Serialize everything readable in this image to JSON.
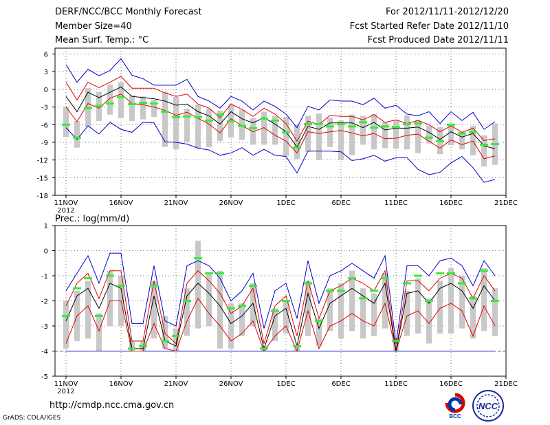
{
  "header": {
    "title": "DERF/NCC/BCC Monthly Forecast",
    "member_size": "Member Size=40",
    "variable_top": "Mean Surf. Temp.: °C",
    "period": "For 2012/11/11-2012/12/20",
    "refer_date": "Fcst Started Refer Date 2012/11/10",
    "produced_date": "Fcst Produced Date 2012/11/11"
  },
  "footer": {
    "url": "http://cmdp.ncc.cma.gov.cn",
    "credit": "GrADS: COLA/IGES",
    "logo_bcc": "BCC",
    "logo_ncc": "NCC"
  },
  "colors": {
    "mean": "#000000",
    "spread": "#e00000",
    "extreme": "#0000cc",
    "box": "#c8c8c8",
    "median": "#33ee33"
  },
  "chart_data": [
    {
      "type": "box-ensemble",
      "title": "Mean Surf. Temp.: °C",
      "ylim": [
        -18,
        7
      ],
      "yticks": [
        -18,
        -15,
        -12,
        -9,
        -6,
        -3,
        0,
        3,
        6
      ],
      "xticks": [
        {
          "day": 0,
          "label": "11NOV",
          "sub": "2012"
        },
        {
          "day": 5,
          "label": "16NOV"
        },
        {
          "day": 10,
          "label": "21NOV"
        },
        {
          "day": 15,
          "label": "26NOV"
        },
        {
          "day": 20,
          "label": "1DEC"
        },
        {
          "day": 25,
          "label": "6DEC"
        },
        {
          "day": 30,
          "label": "11DEC"
        },
        {
          "day": 35,
          "label": "16DEC"
        },
        {
          "day": 40,
          "label": "21DEC"
        }
      ],
      "days": [
        0,
        1,
        2,
        3,
        4,
        5,
        6,
        7,
        8,
        9,
        10,
        11,
        12,
        13,
        14,
        15,
        16,
        17,
        18,
        19,
        20,
        21,
        22,
        23,
        24,
        25,
        26,
        27,
        28,
        29,
        30,
        31,
        32,
        33,
        34,
        35,
        36,
        37,
        38,
        39
      ],
      "max": [
        4.2,
        1.2,
        3.4,
        2.3,
        3.2,
        5.2,
        2.4,
        1.8,
        0.7,
        0.7,
        0.7,
        1.7,
        -1.2,
        -2,
        -3.2,
        -1.2,
        -2,
        -3.5,
        -2,
        -2.9,
        -4.2,
        -6.5,
        -2.9,
        -3.5,
        -1.8,
        -2,
        -2,
        -2.6,
        -1.5,
        -3.2,
        -2.7,
        -4.2,
        -4.5,
        -3.8,
        -5.8,
        -3.8,
        -5.3,
        -3.9,
        -6.8,
        -5.5
      ],
      "upper": [
        1.2,
        -1.8,
        1.2,
        0.3,
        1.2,
        2.2,
        0.2,
        0.2,
        0.2,
        -0.6,
        -1.2,
        -0.8,
        -2.5,
        -3.2,
        -4.8,
        -2.5,
        -3.4,
        -4.6,
        -3.2,
        -4.2,
        -5.8,
        -8.8,
        -5.4,
        -6,
        -4.4,
        -4.6,
        -4.6,
        -5.2,
        -4.3,
        -5.6,
        -5.2,
        -5.8,
        -5.3,
        -6,
        -7.2,
        -6.2,
        -7.3,
        -6.6,
        -8.7,
        -8.4
      ],
      "mean": [
        -1.2,
        -3.8,
        -0.5,
        -1.4,
        -0.5,
        0.4,
        -1.2,
        -1.4,
        -1.6,
        -2,
        -2.7,
        -2.5,
        -3.8,
        -4.5,
        -5.9,
        -3.8,
        -5,
        -5.7,
        -4.8,
        -5.9,
        -7.2,
        -9.8,
        -6.3,
        -6.8,
        -5.7,
        -5.7,
        -5.7,
        -6.5,
        -5.6,
        -6.9,
        -6.6,
        -6.6,
        -6.4,
        -7.3,
        -8.5,
        -7.2,
        -8.1,
        -7.5,
        -9.6,
        -10.1
      ],
      "lower": [
        -3,
        -5.5,
        -2.4,
        -3.2,
        -1.5,
        -0.8,
        -2.4,
        -2.6,
        -3,
        -3.6,
        -4.4,
        -3.9,
        -4.9,
        -5.9,
        -7.4,
        -5,
        -6.2,
        -7.2,
        -6.5,
        -7.8,
        -8.8,
        -10.8,
        -7.2,
        -7.5,
        -7.2,
        -7,
        -7.4,
        -7.9,
        -7.5,
        -8.4,
        -8.3,
        -7.8,
        -7.6,
        -8.8,
        -10,
        -8.6,
        -9.4,
        -8.8,
        -11.8,
        -11.3
      ],
      "min": [
        -6.5,
        -8.5,
        -6.2,
        -7.6,
        -5.6,
        -6.8,
        -7.3,
        -5.6,
        -5.7,
        -8.9,
        -9,
        -9.3,
        -10,
        -10.3,
        -11.2,
        -10.8,
        -9.9,
        -11.2,
        -10.2,
        -11.2,
        -11.4,
        -14.2,
        -10.5,
        -10.5,
        -10.5,
        -10.6,
        -12.1,
        -11.8,
        -11.2,
        -12.2,
        -11.6,
        -11.6,
        -13.6,
        -14.5,
        -14.1,
        -12.5,
        -11.4,
        -13.3,
        -15.8,
        -15.3
      ],
      "box_top": [
        -3,
        -5.4,
        0.2,
        -0.4,
        0.8,
        1.2,
        -1,
        -1.2,
        -1.8,
        -0.4,
        -1.3,
        -3.3,
        -2.6,
        -3.3,
        -3.6,
        -2.6,
        -3.5,
        -4.9,
        -3.8,
        -4.5,
        -4.7,
        -6,
        -4.5,
        -4.1,
        -4.8,
        -5.3,
        -4.3,
        -4.5,
        -4.2,
        -5.5,
        -5.3,
        -4.4,
        -5.2,
        -6.2,
        -6.4,
        -6.1,
        -7.2,
        -6.2,
        -7.8,
        -5.8
      ],
      "box_bottom": [
        -8.1,
        -9.9,
        -6.4,
        -5.4,
        -4.3,
        -4.9,
        -5.4,
        -5.1,
        -4.7,
        -9.8,
        -10.2,
        -8.9,
        -10,
        -9.8,
        -8.8,
        -8.2,
        -8.6,
        -9.4,
        -9.4,
        -9.4,
        -11.3,
        -11.8,
        -10.6,
        -12,
        -9.8,
        -12,
        -11.2,
        -9.4,
        -10.2,
        -10,
        -10.1,
        -10.2,
        -10.8,
        -9.2,
        -11,
        -9.5,
        -10.2,
        -11.2,
        -13.1,
        -12.8
      ],
      "median": [
        -6,
        -8.2,
        -3.2,
        -2.8,
        -2.4,
        -1.3,
        -2.5,
        -2.3,
        -2.4,
        -3.8,
        -4.7,
        -4.6,
        -4.7,
        -5.3,
        -4.3,
        -5.4,
        -6.2,
        -6.6,
        -5,
        -5.3,
        -7.3,
        -9.9,
        -5.9,
        -5.9,
        -6.3,
        -5.9,
        -6.3,
        -5.6,
        -6.5,
        -6.3,
        -6.4,
        -5.9,
        -5.8,
        -8.2,
        -8.8,
        -6,
        -7.5,
        -7.2,
        -9.4,
        -9.3
      ]
    },
    {
      "type": "box-ensemble",
      "title": "Prec.: log(mm/d)",
      "ylim": [
        -5,
        1
      ],
      "yticks": [
        -5,
        -4,
        -3,
        -2,
        -1,
        0,
        1
      ],
      "xticks": [
        {
          "day": 0,
          "label": "11NOV",
          "sub": "2012"
        },
        {
          "day": 5,
          "label": "16NOV"
        },
        {
          "day": 10,
          "label": "21NOV"
        },
        {
          "day": 15,
          "label": "26NOV"
        },
        {
          "day": 20,
          "label": "1DEC"
        },
        {
          "day": 25,
          "label": "6DEC"
        },
        {
          "day": 30,
          "label": "11DEC"
        },
        {
          "day": 35,
          "label": "16DEC"
        },
        {
          "day": 40,
          "label": "21DEC"
        }
      ],
      "baseline": -4,
      "days": [
        0,
        1,
        2,
        3,
        4,
        5,
        6,
        7,
        8,
        9,
        10,
        11,
        12,
        13,
        14,
        15,
        16,
        17,
        18,
        19,
        20,
        21,
        22,
        23,
        24,
        25,
        26,
        27,
        28,
        29,
        30,
        31,
        32,
        33,
        34,
        35,
        36,
        37,
        38,
        39
      ],
      "max": [
        -1.6,
        -0.9,
        -0.2,
        -1.3,
        -0.1,
        -0.1,
        -2.9,
        -2.9,
        -0.6,
        -2.8,
        -3,
        -0.6,
        -0.4,
        -0.6,
        -1.1,
        -2,
        -1.6,
        -0.9,
        -3.1,
        -1.6,
        -1.3,
        -2.7,
        -0.4,
        -2.1,
        -1,
        -0.8,
        -0.5,
        -0.8,
        -1.1,
        -0.2,
        -3.7,
        -0.6,
        -0.6,
        -1,
        -0.4,
        -0.3,
        -0.6,
        -1.4,
        -0.4,
        -1
      ],
      "upper": [
        -2.2,
        -1.3,
        -0.9,
        -1.9,
        -0.8,
        -0.8,
        -3.6,
        -3.6,
        -1.2,
        -3.3,
        -3.7,
        -1.3,
        -0.8,
        -1.2,
        -1.7,
        -2.5,
        -2.2,
        -1.5,
        -3.7,
        -2.2,
        -1.8,
        -3.4,
        -1.2,
        -2.7,
        -1.6,
        -1.4,
        -1.1,
        -1.3,
        -1.6,
        -0.8,
        -4,
        -1.2,
        -1.2,
        -1.6,
        -1.1,
        -0.9,
        -1.1,
        -1.9,
        -1,
        -1.6
      ],
      "mean": [
        -2.8,
        -1.8,
        -1.5,
        -2.3,
        -1.3,
        -1.5,
        -3.9,
        -3.9,
        -1.8,
        -3.6,
        -3.8,
        -1.8,
        -1.3,
        -1.7,
        -2.2,
        -2.9,
        -2.6,
        -2.1,
        -3.9,
        -2.6,
        -2.3,
        -3.8,
        -1.7,
        -3.1,
        -2.1,
        -1.8,
        -1.5,
        -1.8,
        -2.1,
        -1.3,
        -4,
        -1.7,
        -1.6,
        -2.1,
        -1.5,
        -1.3,
        -1.6,
        -2.3,
        -1.4,
        -2
      ],
      "lower": [
        -3.7,
        -2.6,
        -2.2,
        -3.2,
        -2,
        -2,
        -4,
        -4,
        -2.9,
        -3.9,
        -4,
        -2.8,
        -1.9,
        -2.5,
        -3,
        -3.6,
        -3.3,
        -2.8,
        -4,
        -3.4,
        -3,
        -4,
        -2.4,
        -3.9,
        -3,
        -2.8,
        -2.5,
        -2.8,
        -3,
        -2.1,
        -4,
        -2.6,
        -2.4,
        -2.9,
        -2.3,
        -2.1,
        -2.4,
        -3.4,
        -2.2,
        -3
      ],
      "min": [
        -4,
        -4,
        -4,
        -4,
        -4,
        -4,
        -4,
        -4,
        -4,
        -4,
        -4,
        -4,
        -4,
        -4,
        -4,
        -4,
        -4,
        -4,
        -4,
        -4,
        -4,
        -4,
        -4,
        -4,
        -4,
        -4,
        -4,
        -4,
        -4,
        -4,
        -4,
        -4,
        -4,
        -4,
        -4,
        -4,
        -4,
        -4,
        -4,
        -4
      ],
      "box_top": [
        -2,
        -1.6,
        -1.2,
        -2.5,
        -0.8,
        -1,
        -3.6,
        -3.6,
        -1.2,
        -2.6,
        -3.1,
        -1.5,
        0.4,
        -0.9,
        -0.8,
        -2.1,
        -2.1,
        -1.3,
        -3.8,
        -2.3,
        -2,
        -3.8,
        -1.2,
        -2.7,
        -1.5,
        -1.3,
        -0.8,
        -1.5,
        -1.7,
        -0.9,
        -3.6,
        -1.6,
        -1.1,
        -1.9,
        -1.2,
        -0.7,
        -1,
        -1.8,
        -0.7,
        -1.5
      ],
      "box_bottom": [
        -3.9,
        -3.6,
        -3.5,
        -4,
        -3,
        -3,
        -4,
        -4,
        -3.5,
        -3.9,
        -4,
        -3.4,
        -3.1,
        -3,
        -3.9,
        -3.9,
        -3.4,
        -3,
        -4,
        -3.6,
        -3.3,
        -4,
        -3.4,
        -3.8,
        -3.2,
        -3.5,
        -3.2,
        -3.5,
        -3.4,
        -3.1,
        -4,
        -3.4,
        -3.3,
        -3.7,
        -3.3,
        -3.3,
        -3.1,
        -3.5,
        -3.2,
        -3.4
      ],
      "median": [
        -2.6,
        -1.5,
        -1.1,
        -2.6,
        -1,
        -1.4,
        -3.9,
        -3.8,
        -1.4,
        -3.6,
        -3.4,
        -2,
        -0.3,
        -0.9,
        -0.9,
        -2.3,
        -2.2,
        -1.4,
        -3.9,
        -2.4,
        -2,
        -3.8,
        -1.3,
        -2.8,
        -1.6,
        -1.6,
        -1.1,
        -1.9,
        -1.6,
        -1.1,
        -3.6,
        -1.3,
        -1,
        -2,
        -0.9,
        -0.9,
        -1.3,
        -1.9,
        -0.8,
        -2
      ]
    }
  ]
}
